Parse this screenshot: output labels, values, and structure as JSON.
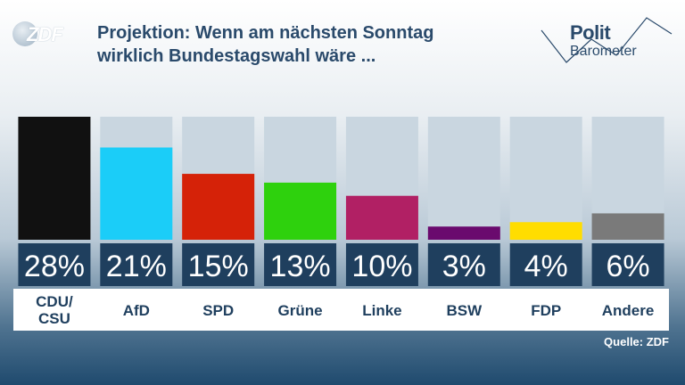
{
  "brand": {
    "logo_text": "ZDF"
  },
  "title_lines": [
    "Projektion: Wenn am nächsten Sonntag",
    "wirklich Bundestagswahl wäre ..."
  ],
  "politbarometer": {
    "line1": "Polit",
    "line2": "Barometer"
  },
  "source": "Quelle: ZDF",
  "chart_data": {
    "type": "bar",
    "categories": [
      "CDU/\nCSU",
      "AfD",
      "SPD",
      "Grüne",
      "Linke",
      "BSW",
      "FDP",
      "Andere"
    ],
    "values": [
      28,
      21,
      15,
      13,
      10,
      3,
      4,
      6
    ],
    "value_labels": [
      "28%",
      "21%",
      "15%",
      "13%",
      "10%",
      "3%",
      "4%",
      "6%"
    ],
    "colors": [
      "#111111",
      "#1bcdf8",
      "#d52208",
      "#2ed10d",
      "#b12064",
      "#6a0a6e",
      "#ffdd00",
      "#7a7a7a"
    ],
    "ylim": [
      0,
      28
    ],
    "grid": false
  }
}
